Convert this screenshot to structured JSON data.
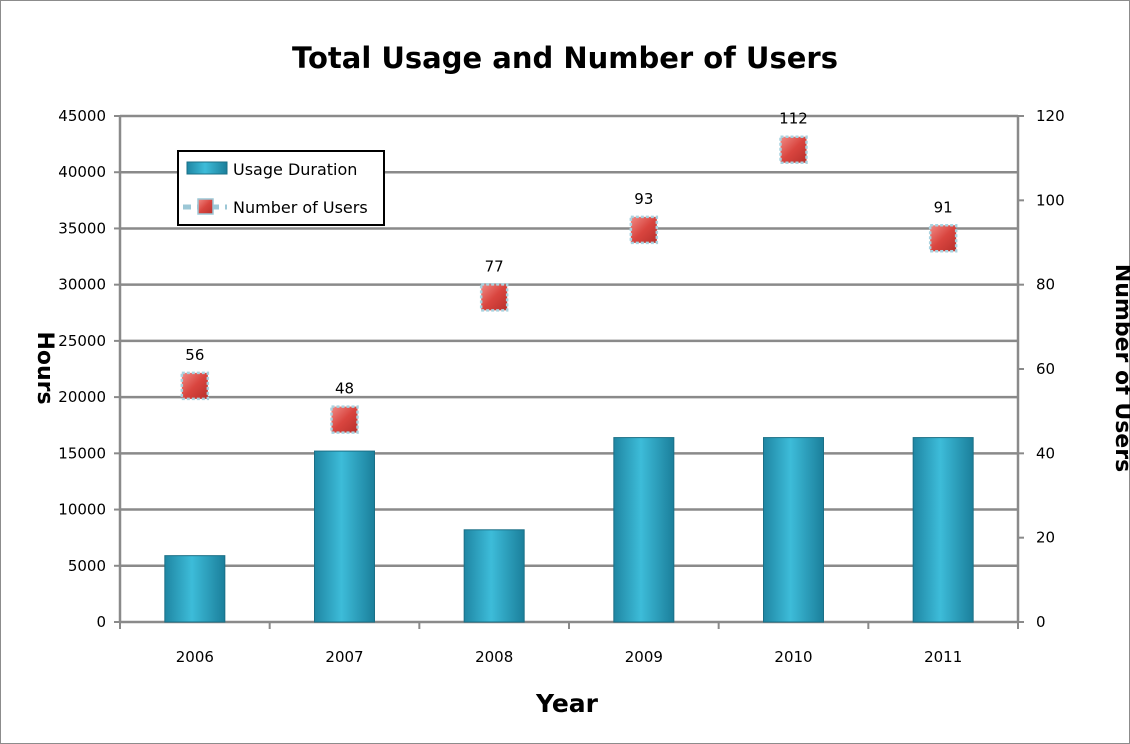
{
  "chart_data": {
    "type": "bar",
    "title": "Total Usage and Number of Users",
    "xlabel": "Year",
    "ylabel_left": "Hours",
    "ylabel_right": "Number of Users",
    "categories": [
      "2006",
      "2007",
      "2008",
      "2009",
      "2010",
      "2011"
    ],
    "ylim_left": [
      0,
      45000
    ],
    "yticks_left": [
      "0",
      "5000",
      "10000",
      "15000",
      "20000",
      "25000",
      "30000",
      "35000",
      "40000",
      "45000"
    ],
    "ylim_right": [
      0,
      120
    ],
    "yticks_right": [
      "0",
      "20",
      "40",
      "60",
      "80",
      "100",
      "120"
    ],
    "series": [
      {
        "name": "Usage Duration",
        "type": "bar",
        "axis": "left",
        "color": "#2aa5c4",
        "values": [
          5900,
          15200,
          8200,
          16400,
          16400,
          16400
        ]
      },
      {
        "name": "Number of Users",
        "type": "scatter",
        "axis": "right",
        "color": "#d9453f",
        "values": [
          56,
          48,
          77,
          93,
          112,
          91
        ],
        "labels": [
          "56",
          "48",
          "77",
          "93",
          "112",
          "91"
        ]
      }
    ],
    "grid": true,
    "legend": "top-left"
  }
}
